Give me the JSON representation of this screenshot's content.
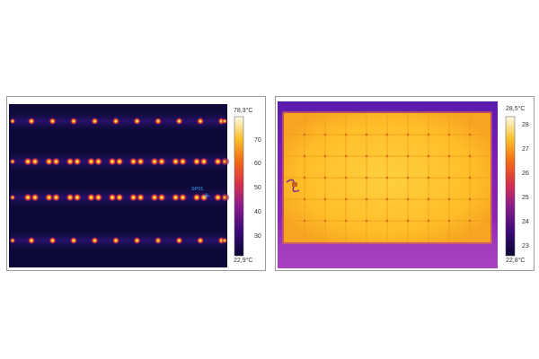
{
  "left_image": {
    "max_label": "78,3°C",
    "min_label": "22,9°C",
    "ticks": [
      "70",
      "60",
      "50",
      "40",
      "30"
    ],
    "spot_label": "SP01",
    "palette": "iron"
  },
  "right_image": {
    "max_label": "28,5°C",
    "min_label": "22,8°C",
    "ticks": [
      "28",
      "27",
      "26",
      "25",
      "24",
      "23"
    ],
    "palette": "iron"
  }
}
